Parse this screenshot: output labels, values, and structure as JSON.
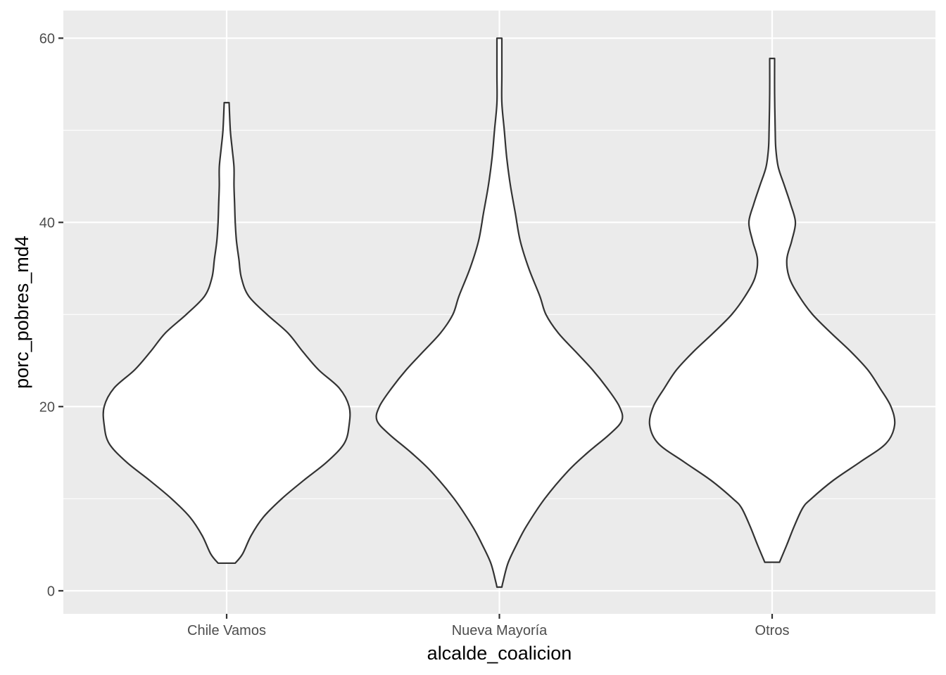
{
  "chart_data": {
    "type": "violin",
    "xlabel": "alcalde_coalicion",
    "ylabel": "porc_pobres_md4",
    "categories": [
      "Chile Vamos",
      "Nueva Mayoría",
      "Otros"
    ],
    "ylim": [
      -2.5,
      63
    ],
    "yticks": [
      0,
      20,
      40,
      60
    ],
    "grid": true,
    "legend": "none",
    "colors": {
      "panel": "#ebebeb",
      "grid": "#ffffff",
      "violin_fill": "#ffffff",
      "violin_stroke": "#333333",
      "tick_label": "#4d4d4d",
      "axis_title": "#000000"
    },
    "series": [
      {
        "category": "Chile Vamos",
        "min": 3.0,
        "max": 53.0,
        "density_profile": [
          [
            3.0,
            0.07
          ],
          [
            4.0,
            0.13
          ],
          [
            6.0,
            0.2
          ],
          [
            8.0,
            0.3
          ],
          [
            10.0,
            0.45
          ],
          [
            12.0,
            0.63
          ],
          [
            14.0,
            0.82
          ],
          [
            16.0,
            0.96
          ],
          [
            18.0,
            1.0
          ],
          [
            20.0,
            1.0
          ],
          [
            22.0,
            0.92
          ],
          [
            24.0,
            0.75
          ],
          [
            26.0,
            0.62
          ],
          [
            28.0,
            0.5
          ],
          [
            30.0,
            0.33
          ],
          [
            32.0,
            0.18
          ],
          [
            34.0,
            0.12
          ],
          [
            36.0,
            0.1
          ],
          [
            38.0,
            0.08
          ],
          [
            40.0,
            0.07
          ],
          [
            42.0,
            0.065
          ],
          [
            44.0,
            0.06
          ],
          [
            46.0,
            0.06
          ],
          [
            48.0,
            0.045
          ],
          [
            50.0,
            0.03
          ],
          [
            53.0,
            0.02
          ]
        ]
      },
      {
        "category": "Nueva Mayoría",
        "min": 0.4,
        "max": 60.0,
        "density_profile": [
          [
            0.4,
            0.02
          ],
          [
            1.0,
            0.03
          ],
          [
            3.0,
            0.07
          ],
          [
            5.0,
            0.14
          ],
          [
            7.0,
            0.22
          ],
          [
            10.0,
            0.37
          ],
          [
            13.0,
            0.56
          ],
          [
            15.0,
            0.72
          ],
          [
            17.0,
            0.9
          ],
          [
            18.5,
            1.0
          ],
          [
            20.0,
            0.98
          ],
          [
            22.0,
            0.88
          ],
          [
            24.0,
            0.76
          ],
          [
            26.0,
            0.62
          ],
          [
            28.0,
            0.48
          ],
          [
            30.0,
            0.38
          ],
          [
            32.0,
            0.33
          ],
          [
            35.0,
            0.24
          ],
          [
            38.0,
            0.17
          ],
          [
            41.0,
            0.13
          ],
          [
            44.0,
            0.09
          ],
          [
            47.0,
            0.06
          ],
          [
            50.0,
            0.04
          ],
          [
            53.0,
            0.02
          ],
          [
            56.0,
            0.02
          ],
          [
            60.0,
            0.02
          ]
        ]
      },
      {
        "category": "Otros",
        "min": 3.1,
        "max": 57.8,
        "density_profile": [
          [
            3.1,
            0.06
          ],
          [
            5.0,
            0.12
          ],
          [
            7.0,
            0.18
          ],
          [
            9.0,
            0.25
          ],
          [
            10.0,
            0.32
          ],
          [
            12.0,
            0.5
          ],
          [
            14.0,
            0.72
          ],
          [
            16.0,
            0.93
          ],
          [
            18.0,
            1.0
          ],
          [
            20.0,
            0.97
          ],
          [
            22.0,
            0.88
          ],
          [
            24.0,
            0.78
          ],
          [
            26.0,
            0.64
          ],
          [
            28.0,
            0.48
          ],
          [
            30.0,
            0.33
          ],
          [
            32.0,
            0.22
          ],
          [
            34.0,
            0.14
          ],
          [
            36.0,
            0.12
          ],
          [
            38.0,
            0.16
          ],
          [
            40.0,
            0.19
          ],
          [
            42.0,
            0.15
          ],
          [
            44.0,
            0.1
          ],
          [
            46.0,
            0.05
          ],
          [
            48.0,
            0.03
          ],
          [
            50.0,
            0.025
          ],
          [
            54.0,
            0.02
          ],
          [
            57.8,
            0.02
          ]
        ]
      }
    ]
  }
}
